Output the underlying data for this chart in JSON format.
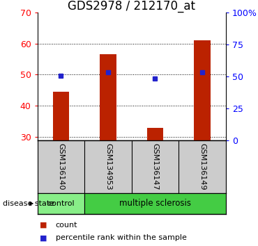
{
  "title": "GDS2978 / 212170_at",
  "samples": [
    "GSM136140",
    "GSM134953",
    "GSM136147",
    "GSM136149"
  ],
  "bar_values": [
    44.5,
    56.5,
    33.0,
    61.0
  ],
  "bar_bottom": 29.0,
  "percentile_values": [
    50.5,
    53.0,
    48.0,
    53.0
  ],
  "ylim_left": [
    29,
    70
  ],
  "ylim_right": [
    0,
    100
  ],
  "yticks_left": [
    30,
    40,
    50,
    60,
    70
  ],
  "yticks_right": [
    0,
    25,
    50,
    75,
    100
  ],
  "bar_color": "#bb2200",
  "dot_color": "#2222cc",
  "sample_bg_color": "#cccccc",
  "disease_color_control": "#88ee88",
  "disease_color_ms": "#44cc44",
  "title_fontsize": 12,
  "axis_fontsize": 9,
  "bar_width": 0.35,
  "right_ytick_labels": [
    "0",
    "25",
    "50",
    "75",
    "100%"
  ],
  "legend_count": "count",
  "legend_percentile": "percentile rank within the sample"
}
